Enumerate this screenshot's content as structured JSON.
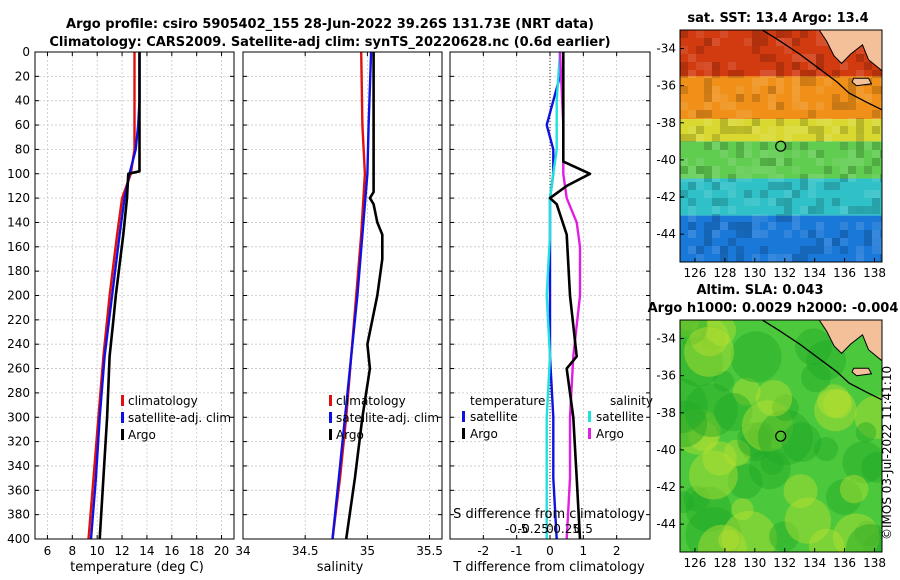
{
  "title": {
    "line1": "Argo profile: csiro 5905402_155 28-Jun-2022 39.26S 131.73E (NRT data)",
    "line2": "Climatology: CARS2009. Satellite-adj clim: synTS_20220628.nc (0.6d earlier)"
  },
  "credit": "©IMOS 03-Jul-2022 11:41:10",
  "colors": {
    "climatology": "#e01010",
    "satellite": "#1010e0",
    "argo": "#000000",
    "sal_satellite": "#20e0e0",
    "sal_argo": "#e020e0",
    "land": "#f4c09a"
  },
  "chart_data": [
    {
      "type": "line",
      "id": "temperature-profile",
      "xlabel": "temperature (deg C)",
      "ylabel": "",
      "xlim": [
        5,
        21
      ],
      "ylim": [
        400,
        0
      ],
      "xticks": [
        "6",
        "8",
        "10",
        "12",
        "14",
        "16",
        "18",
        "20"
      ],
      "xtick_values": [
        6,
        8,
        10,
        12,
        14,
        16,
        18,
        20
      ],
      "yticks": [
        "0",
        "20",
        "40",
        "60",
        "80",
        "100",
        "120",
        "140",
        "160",
        "180",
        "200",
        "220",
        "240",
        "260",
        "280",
        "300",
        "320",
        "340",
        "360",
        "380",
        "400"
      ],
      "legend": [
        "climatology",
        "satellite-adj. clim",
        "Argo"
      ],
      "series": [
        {
          "name": "climatology",
          "color": "#e01010",
          "depth": [
            0,
            40,
            80,
            100,
            120,
            150,
            200,
            250,
            300,
            350,
            400
          ],
          "values": [
            13.0,
            13.0,
            13.0,
            12.7,
            12.0,
            11.6,
            11.0,
            10.5,
            10.1,
            9.7,
            9.3
          ]
        },
        {
          "name": "satellite-adj. clim",
          "color": "#1010e0",
          "depth": [
            0,
            40,
            60,
            80,
            100,
            120,
            150,
            200,
            250,
            300,
            350,
            400
          ],
          "values": [
            13.4,
            13.4,
            13.3,
            13.1,
            12.6,
            12.2,
            11.8,
            11.2,
            10.6,
            10.2,
            9.9,
            9.5
          ]
        },
        {
          "name": "Argo",
          "color": "#000000",
          "depth": [
            0,
            40,
            80,
            98,
            100,
            120,
            150,
            200,
            220,
            250,
            300,
            350,
            400
          ],
          "values": [
            13.4,
            13.4,
            13.4,
            13.4,
            12.5,
            12.4,
            12.1,
            11.5,
            11.3,
            11.0,
            10.8,
            10.5,
            10.2
          ]
        }
      ]
    },
    {
      "type": "line",
      "id": "salinity-profile",
      "xlabel": "salinity",
      "xlim": [
        34,
        35.6
      ],
      "ylim": [
        400,
        0
      ],
      "xticks": [
        "34",
        "34.5",
        "35",
        "35.5"
      ],
      "xtick_values": [
        34,
        34.5,
        35,
        35.5
      ],
      "legend": [
        "climatology",
        "satellite-adj. clim",
        "Argo"
      ],
      "series": [
        {
          "name": "climatology",
          "color": "#e01010",
          "depth": [
            0,
            60,
            100,
            150,
            200,
            250,
            300,
            350,
            400
          ],
          "values": [
            34.95,
            34.96,
            34.98,
            34.95,
            34.91,
            34.87,
            34.83,
            34.78,
            34.72
          ]
        },
        {
          "name": "satellite-adj. clim",
          "color": "#1010e0",
          "depth": [
            0,
            60,
            100,
            150,
            200,
            250,
            300,
            350,
            400
          ],
          "values": [
            35.03,
            35.01,
            35.0,
            34.96,
            34.92,
            34.87,
            34.82,
            34.77,
            34.72
          ]
        },
        {
          "name": "Argo",
          "color": "#000000",
          "depth": [
            0,
            60,
            100,
            115,
            120,
            125,
            140,
            150,
            170,
            200,
            240,
            260,
            300,
            350,
            400
          ],
          "values": [
            35.05,
            35.05,
            35.05,
            35.05,
            35.02,
            35.05,
            35.08,
            35.12,
            35.12,
            35.08,
            35.0,
            35.02,
            34.96,
            34.9,
            34.83
          ]
        }
      ]
    },
    {
      "type": "line",
      "id": "difference-profile",
      "xlabel": "T difference from climatology",
      "xlabel2": "S difference from climatology",
      "xlim": [
        -3,
        3
      ],
      "ylim": [
        400,
        0
      ],
      "xticks": [
        "-2",
        "-1",
        "0",
        "1",
        "2"
      ],
      "xtick_values": [
        -2,
        -1,
        0,
        1,
        2
      ],
      "xticks_s": [
        "-0.5",
        "-0.25",
        "0",
        "0.25",
        "0.5"
      ],
      "legend_temperature": [
        "temperature",
        "satellite",
        "Argo"
      ],
      "legend_salinity": [
        "salinity",
        "satellite",
        "Argo"
      ],
      "series": [
        {
          "name": "temperature satellite",
          "color": "#1010e0",
          "depth": [
            0,
            20,
            40,
            60,
            80,
            100,
            120,
            150,
            200,
            250,
            300,
            350,
            400
          ],
          "values": [
            0.3,
            0.3,
            0.1,
            -0.1,
            0.1,
            0.1,
            0.0,
            0.0,
            0.0,
            0.0,
            0.1,
            0.1,
            0.2
          ]
        },
        {
          "name": "salinity satellite",
          "color": "#20e0e0",
          "depth": [
            0,
            40,
            60,
            80,
            100,
            120,
            150,
            200,
            250,
            300,
            350,
            400
          ],
          "values": [
            0.3,
            0.2,
            0.2,
            0.2,
            0.1,
            0.0,
            0.0,
            -0.1,
            0.0,
            -0.1,
            -0.1,
            -0.1
          ]
        },
        {
          "name": "salinity Argo",
          "color": "#e020e0",
          "depth": [
            0,
            60,
            100,
            120,
            140,
            160,
            200,
            250,
            300,
            350,
            400
          ],
          "values": [
            0.3,
            0.4,
            0.4,
            0.5,
            0.8,
            0.9,
            0.9,
            0.7,
            0.6,
            0.6,
            0.5
          ]
        },
        {
          "name": "temperature Argo",
          "color": "#000000",
          "depth": [
            0,
            60,
            90,
            100,
            110,
            120,
            125,
            150,
            200,
            250,
            260,
            300,
            350,
            400
          ],
          "values": [
            0.4,
            0.4,
            0.4,
            1.2,
            0.5,
            0.0,
            0.2,
            0.5,
            0.6,
            0.8,
            0.5,
            0.7,
            0.8,
            0.9
          ]
        }
      ]
    },
    {
      "type": "heatmap",
      "id": "sst-map",
      "title": "sat. SST: 13.4 Argo: 13.4",
      "xlim": [
        125,
        138.5
      ],
      "ylim": [
        -45.5,
        -33
      ],
      "xticks": [
        "126",
        "128",
        "130",
        "132",
        "134",
        "136",
        "138"
      ],
      "xtick_values": [
        126,
        128,
        130,
        132,
        134,
        136,
        138
      ],
      "yticks": [
        "-34",
        "-36",
        "-38",
        "-40",
        "-42",
        "-44"
      ],
      "ytick_values": [
        -34,
        -36,
        -38,
        -40,
        -42,
        -44
      ],
      "marker": {
        "lon": 131.73,
        "lat": -39.26
      },
      "color_bands": [
        {
          "lat_top": -33,
          "lat_bot": -35.5,
          "color": "#d23a10"
        },
        {
          "lat_top": -35.5,
          "lat_bot": -37.8,
          "color": "#f09018"
        },
        {
          "lat_top": -37.8,
          "lat_bot": -39,
          "color": "#d8d830"
        },
        {
          "lat_top": -39,
          "lat_bot": -41,
          "color": "#60cc50"
        },
        {
          "lat_top": -41,
          "lat_bot": -43,
          "color": "#30c0c8"
        },
        {
          "lat_top": -43,
          "lat_bot": -45.5,
          "color": "#1a78d8"
        }
      ]
    },
    {
      "type": "heatmap",
      "id": "sla-map",
      "title": "Altim. SLA: 0.043",
      "subtitle": "Argo h1000: 0.0029 h2000: -0.004",
      "xlim": [
        125,
        138.5
      ],
      "ylim": [
        -45.5,
        -33
      ],
      "xticks": [
        "126",
        "128",
        "130",
        "132",
        "134",
        "136",
        "138"
      ],
      "xtick_values": [
        126,
        128,
        130,
        132,
        134,
        136,
        138
      ],
      "yticks": [
        "-34",
        "-36",
        "-38",
        "-40",
        "-42",
        "-44"
      ],
      "ytick_values": [
        -34,
        -36,
        -38,
        -40,
        -42,
        -44
      ],
      "marker": {
        "lon": 131.73,
        "lat": -39.26
      },
      "base_color": "#4cc83c"
    }
  ]
}
